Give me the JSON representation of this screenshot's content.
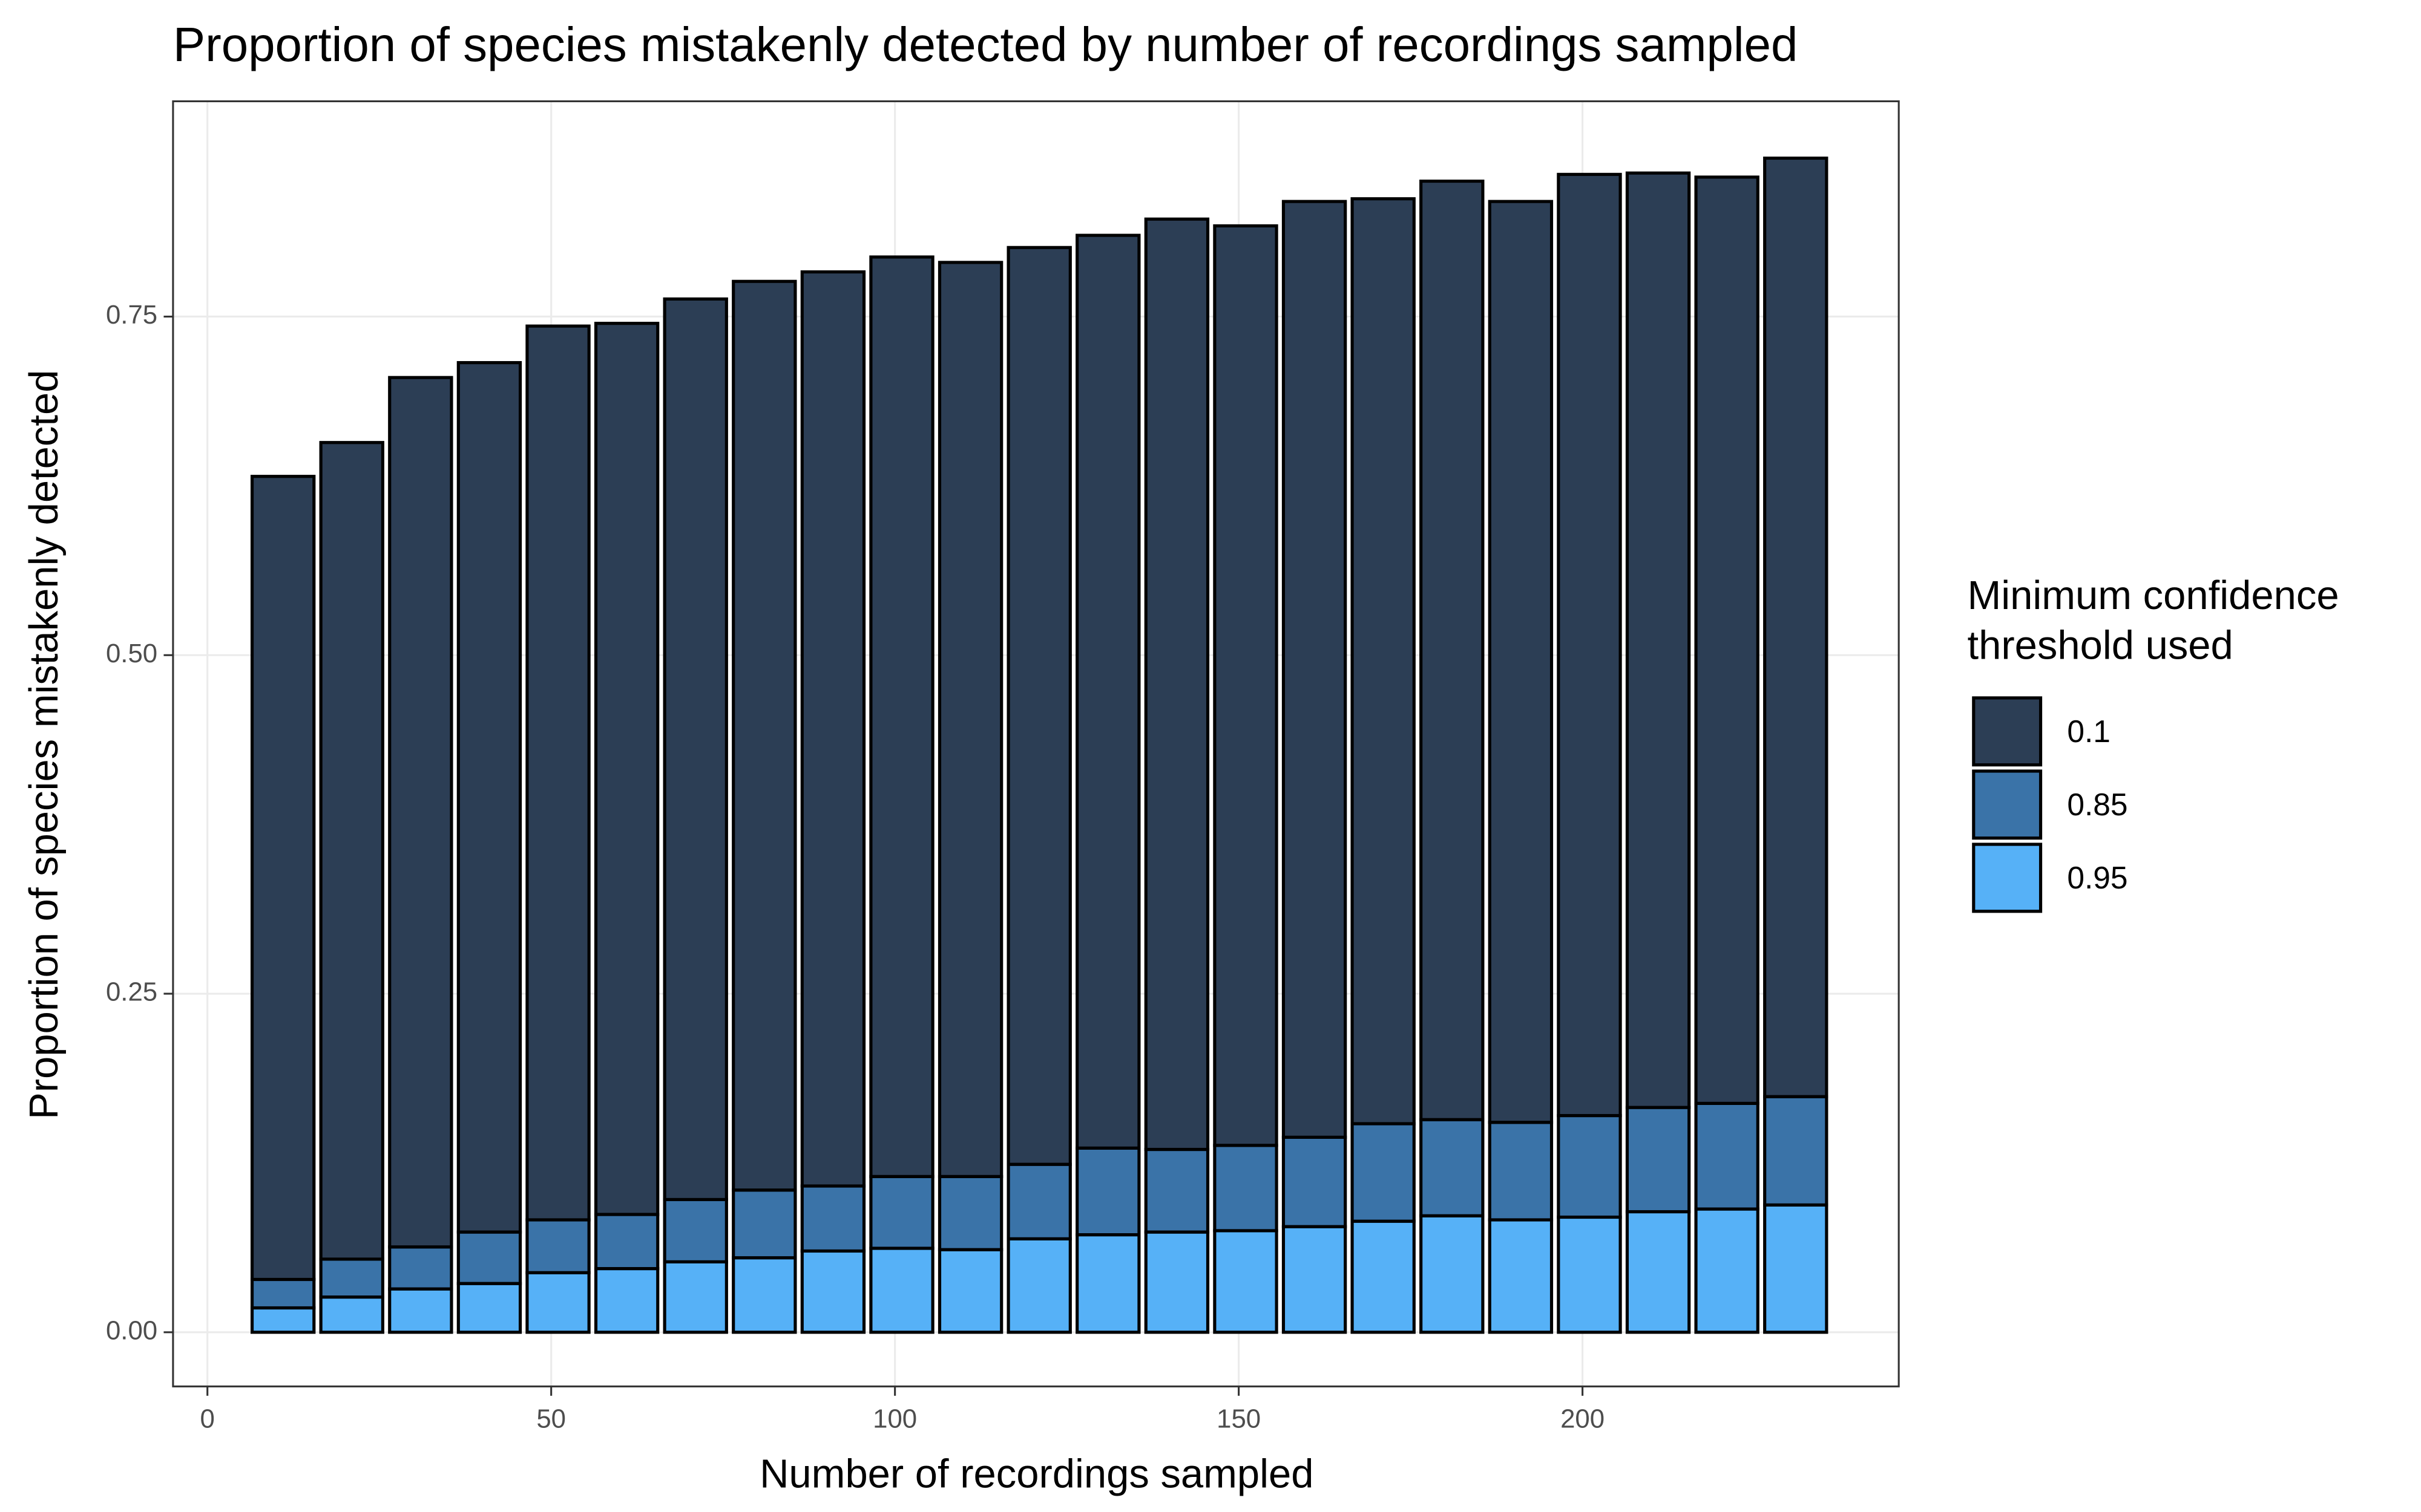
{
  "chart_data": {
    "type": "stacked_bar",
    "title": "Proportion of species mistakenly detected by number of recordings sampled",
    "x_label": "Number of recordings sampled",
    "y_label": "Proportion of species mistakenly detected",
    "legend_title": "Minimum confidence threshold used",
    "legend_position": "right",
    "grid": true,
    "x": [
      11,
      21,
      31,
      41,
      51,
      61,
      71,
      81,
      91,
      101,
      111,
      121,
      131,
      141,
      151,
      161,
      171,
      181,
      191,
      201,
      211,
      221,
      231
    ],
    "series": [
      {
        "name": "0.1",
        "color": "#2c3e55",
        "values": [
          0.593,
          0.603,
          0.642,
          0.642,
          0.66,
          0.658,
          0.665,
          0.671,
          0.675,
          0.679,
          0.675,
          0.677,
          0.674,
          0.687,
          0.679,
          0.691,
          0.683,
          0.693,
          0.68,
          0.695,
          0.69,
          0.684,
          0.693
        ]
      },
      {
        "name": "0.85",
        "color": "#3a73a8",
        "values": [
          0.021,
          0.028,
          0.031,
          0.038,
          0.039,
          0.04,
          0.046,
          0.05,
          0.048,
          0.053,
          0.054,
          0.055,
          0.064,
          0.061,
          0.063,
          0.066,
          0.072,
          0.071,
          0.072,
          0.075,
          0.077,
          0.078,
          0.08
        ]
      },
      {
        "name": "0.95",
        "color": "#56b1f7",
        "values": [
          0.018,
          0.026,
          0.032,
          0.036,
          0.044,
          0.047,
          0.052,
          0.055,
          0.06,
          0.062,
          0.061,
          0.069,
          0.072,
          0.074,
          0.075,
          0.078,
          0.082,
          0.086,
          0.083,
          0.085,
          0.089,
          0.091,
          0.094
        ]
      }
    ],
    "xlim": [
      -5,
      246
    ],
    "ylim": [
      -0.04,
      0.909
    ],
    "xticks": [
      0,
      50,
      100,
      150,
      200
    ],
    "yticks": [
      {
        "value": 0,
        "label": "0.00"
      },
      0.25,
      {
        "value": 0.5,
        "label": "0.50"
      },
      0.75
    ]
  }
}
